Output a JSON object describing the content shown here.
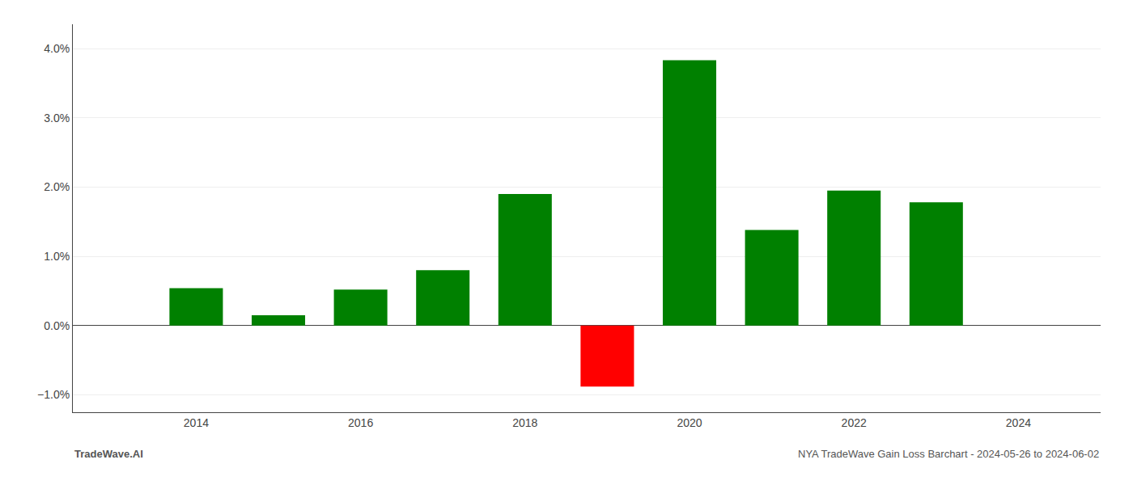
{
  "chart_data": {
    "type": "bar",
    "x": [
      2014,
      2015,
      2016,
      2017,
      2018,
      2019,
      2020,
      2021,
      2022,
      2023
    ],
    "values": [
      0.54,
      0.15,
      0.52,
      0.8,
      1.9,
      -0.88,
      3.83,
      1.38,
      1.95,
      1.78
    ],
    "colors": [
      "#008000",
      "#008000",
      "#008000",
      "#008000",
      "#008000",
      "#ff0000",
      "#008000",
      "#008000",
      "#008000",
      "#008000"
    ],
    "xlim": [
      2012.5,
      2025.0
    ],
    "xticks": [
      2014,
      2016,
      2018,
      2020,
      2022,
      2024
    ],
    "ylim": [
      -1.25,
      4.35
    ],
    "yticks": [
      {
        "value": -1.0,
        "label": "−1.0%"
      },
      {
        "value": 0.0,
        "label": "0.0%"
      },
      {
        "value": 1.0,
        "label": "1.0%"
      },
      {
        "value": 2.0,
        "label": "2.0%"
      },
      {
        "value": 3.0,
        "label": "3.0%"
      },
      {
        "value": 4.0,
        "label": "4.0%"
      }
    ],
    "grid": true,
    "annotations": [
      "TradeWave.AI",
      "NYA TradeWave Gain Loss Barchart - 2024-05-26 to 2024-06-02"
    ]
  }
}
